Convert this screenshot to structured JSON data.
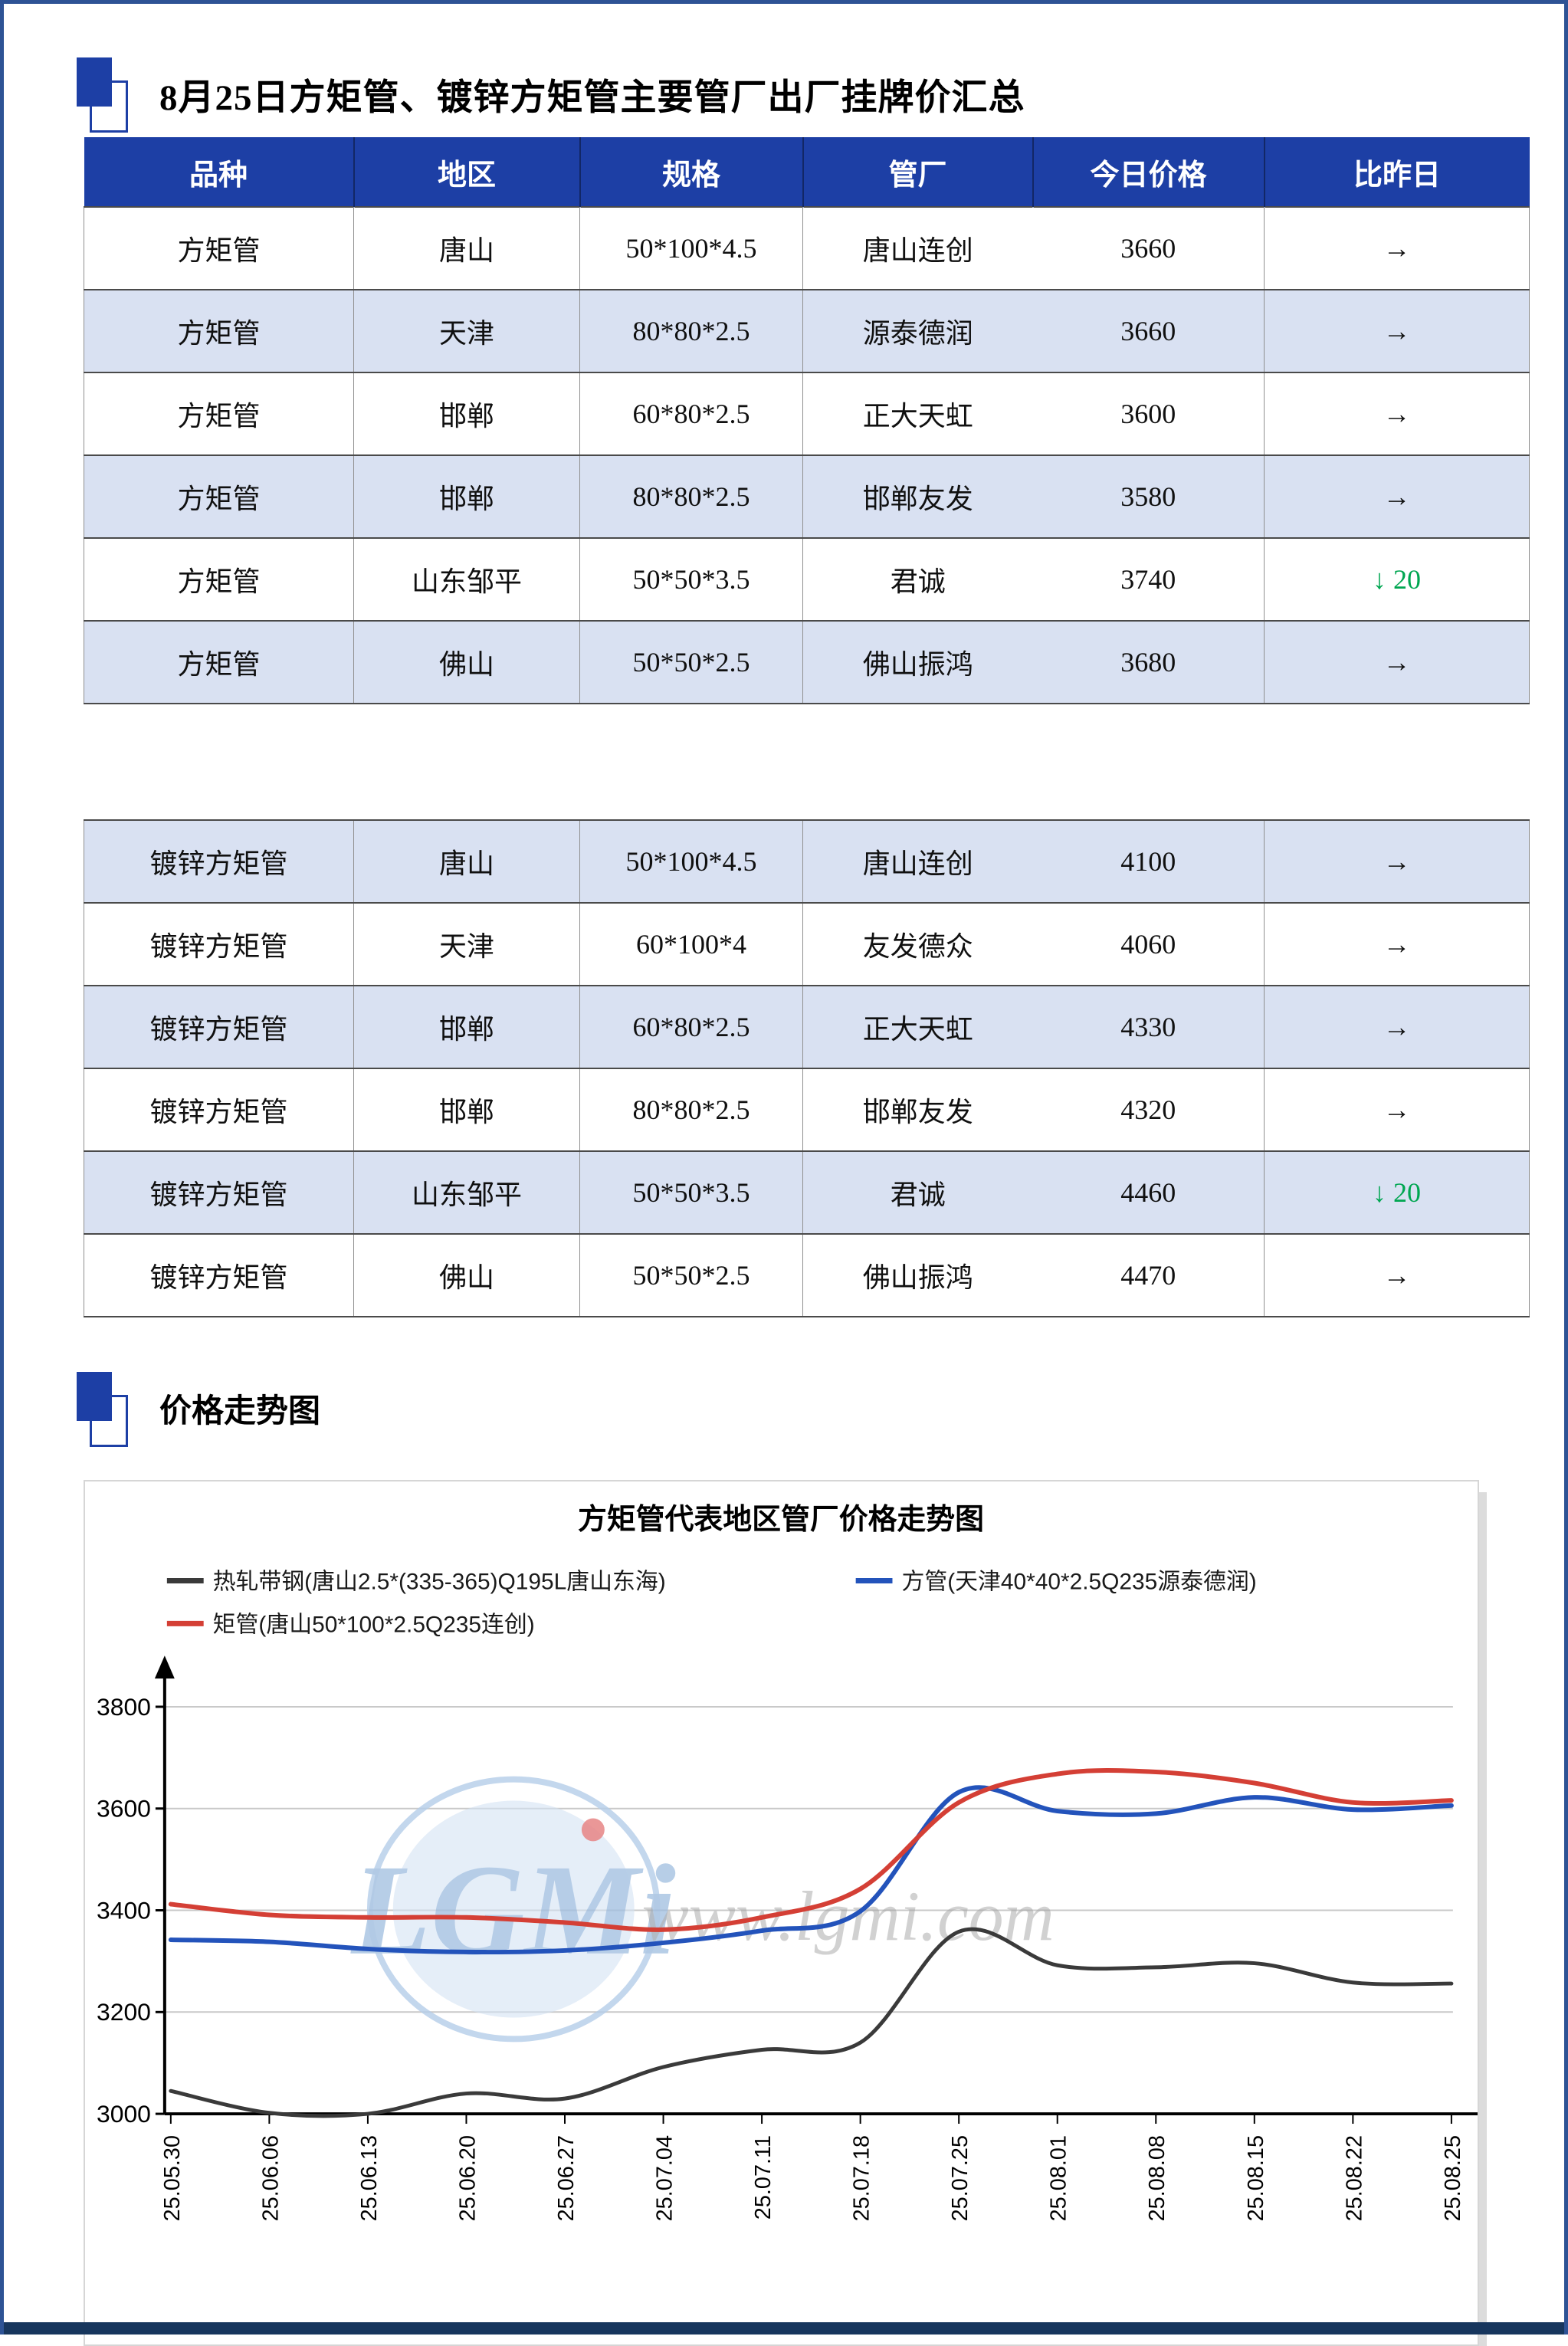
{
  "page": {
    "title": "8月25日方矩管、镀锌方矩管主要管厂出厂挂牌价汇总",
    "section2_title": "价格走势图"
  },
  "table": {
    "headers": [
      "品种",
      "地区",
      "规格",
      "管厂",
      "今日价格",
      "比昨日"
    ],
    "sections": [
      {
        "rows": [
          {
            "variety": "方矩管",
            "region": "唐山",
            "spec": "50*100*4.5",
            "factory": "唐山连创",
            "price": "3660",
            "change_text": "→",
            "change_dir": "flat"
          },
          {
            "variety": "方矩管",
            "region": "天津",
            "spec": "80*80*2.5",
            "factory": "源泰德润",
            "price": "3660",
            "change_text": "→",
            "change_dir": "flat"
          },
          {
            "variety": "方矩管",
            "region": "邯郸",
            "spec": "60*80*2.5",
            "factory": "正大天虹",
            "price": "3600",
            "change_text": "→",
            "change_dir": "flat"
          },
          {
            "variety": "方矩管",
            "region": "邯郸",
            "spec": "80*80*2.5",
            "factory": "邯郸友发",
            "price": "3580",
            "change_text": "→",
            "change_dir": "flat"
          },
          {
            "variety": "方矩管",
            "region": "山东邹平",
            "spec": "50*50*3.5",
            "factory": "君诚",
            "price": "3740",
            "change_text": "↓ 20",
            "change_dir": "down"
          },
          {
            "variety": "方矩管",
            "region": "佛山",
            "spec": "50*50*2.5",
            "factory": "佛山振鸿",
            "price": "3680",
            "change_text": "→",
            "change_dir": "flat"
          }
        ]
      },
      {
        "rows": [
          {
            "variety": "镀锌方矩管",
            "region": "唐山",
            "spec": "50*100*4.5",
            "factory": "唐山连创",
            "price": "4100",
            "change_text": "→",
            "change_dir": "flat"
          },
          {
            "variety": "镀锌方矩管",
            "region": "天津",
            "spec": "60*100*4",
            "factory": "友发德众",
            "price": "4060",
            "change_text": "→",
            "change_dir": "flat"
          },
          {
            "variety": "镀锌方矩管",
            "region": "邯郸",
            "spec": "60*80*2.5",
            "factory": "正大天虹",
            "price": "4330",
            "change_text": "→",
            "change_dir": "flat"
          },
          {
            "variety": "镀锌方矩管",
            "region": "邯郸",
            "spec": "80*80*2.5",
            "factory": "邯郸友发",
            "price": "4320",
            "change_text": "→",
            "change_dir": "flat"
          },
          {
            "variety": "镀锌方矩管",
            "region": "山东邹平",
            "spec": "50*50*3.5",
            "factory": "君诚",
            "price": "4460",
            "change_text": "↓ 20",
            "change_dir": "down"
          },
          {
            "variety": "镀锌方矩管",
            "region": "佛山",
            "spec": "50*50*2.5",
            "factory": "佛山振鸿",
            "price": "4470",
            "change_text": "→",
            "change_dir": "flat"
          }
        ]
      }
    ]
  },
  "chart_data": {
    "type": "line",
    "title": "方矩管代表地区管厂价格走势图",
    "x": [
      "25.05.30",
      "25.06.06",
      "25.06.13",
      "25.06.20",
      "25.06.27",
      "25.07.04",
      "25.07.11",
      "25.07.18",
      "25.07.25",
      "25.08.01",
      "25.08.08",
      "25.08.15",
      "25.08.22",
      "25.08.25"
    ],
    "y_ticks": [
      3000,
      3200,
      3400,
      3600,
      3800
    ],
    "ylim": [
      3000,
      3870
    ],
    "grid": true,
    "legend_position": "top-left",
    "series": [
      {
        "name": "热轧带钢(唐山2.5*(335-365)Q195L唐山东海)",
        "color": "#3a3a3a",
        "values": [
          3045,
          3002,
          3000,
          3040,
          3030,
          3092,
          3126,
          3140,
          3358,
          3292,
          3288,
          3296,
          3258,
          3256
        ]
      },
      {
        "name": "方管(天津40*40*2.5Q235源泰德润)",
        "color": "#2353bb",
        "values": [
          3342,
          3338,
          3324,
          3318,
          3321,
          3336,
          3360,
          3398,
          3632,
          3595,
          3590,
          3622,
          3598,
          3606
        ]
      },
      {
        "name": "矩管(唐山50*100*2.5Q235连创)",
        "color": "#d43f35",
        "values": [
          3412,
          3391,
          3386,
          3386,
          3376,
          3362,
          3386,
          3442,
          3612,
          3668,
          3672,
          3650,
          3612,
          3616
        ]
      }
    ],
    "watermark": {
      "logo": "LGMi",
      "url_text": "www.lgmi.com"
    }
  },
  "colors": {
    "header_blue": "#1d3fa5",
    "shaded_row": "#d9e1f2",
    "down_green": "#00a651",
    "frame_blue": "#2e5395",
    "bottom_navy": "#17365d"
  }
}
